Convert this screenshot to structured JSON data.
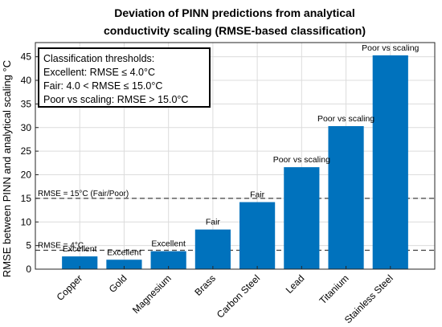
{
  "chart_data": {
    "type": "bar",
    "title_lines": [
      "Deviation of PINN predictions from analytical",
      "conductivity scaling (RMSE-based classification)"
    ],
    "ylabel": "RMSE between PINN and analytical scaling °C",
    "xlabel": "",
    "categories": [
      "Copper",
      "Gold",
      "Magnesium",
      "Brass",
      "Carbon Steel",
      "Lead",
      "Titanium",
      "Stainless Steel"
    ],
    "values": [
      2.7,
      2.0,
      3.8,
      8.4,
      14.2,
      21.6,
      30.3,
      45.3
    ],
    "bar_labels": [
      "Excellent",
      "Excellent",
      "Excellent",
      "Fair",
      "Fair",
      "Poor vs scaling",
      "Poor vs scaling",
      "Poor vs scaling"
    ],
    "ylim": [
      0,
      48
    ],
    "yticks": [
      0,
      5,
      10,
      15,
      20,
      25,
      30,
      35,
      40,
      45
    ],
    "grid": true,
    "bar_color": "#0072BD",
    "reference_lines": [
      {
        "value": 15,
        "label": "RMSE = 15°C (Fair/Poor)"
      },
      {
        "value": 4,
        "label": "RMSE = 4°C"
      }
    ],
    "legend_box": {
      "placement": "top-left",
      "lines": [
        "Classification thresholds:",
        "Excellent: RMSE ≤ 4.0°C",
        "Fair: 4.0 < RMSE ≤ 15.0°C",
        "Poor vs scaling: RMSE > 15.0°C"
      ]
    }
  }
}
